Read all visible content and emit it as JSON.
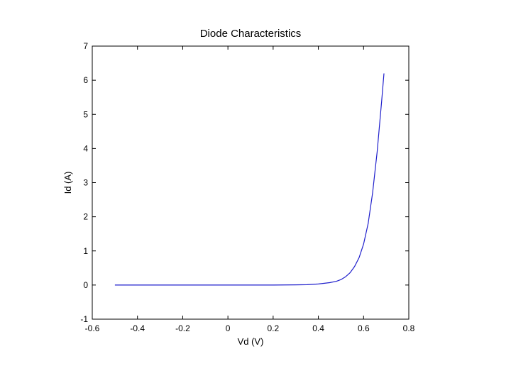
{
  "chart_data": {
    "type": "line",
    "title": "Diode Characteristics",
    "xlabel": "Vd (V)",
    "ylabel": "Id (A)",
    "xlim": [
      -0.6,
      0.8
    ],
    "ylim": [
      -1,
      7
    ],
    "xticks": [
      -0.6,
      -0.4,
      -0.2,
      0,
      0.2,
      0.4,
      0.6,
      0.8
    ],
    "yticks": [
      -1,
      0,
      1,
      2,
      3,
      4,
      5,
      6,
      7
    ],
    "xtick_labels": [
      "-0.6",
      "-0.4",
      "-0.2",
      "0",
      "0.2",
      "0.4",
      "0.6",
      "0.8"
    ],
    "ytick_labels": [
      "-1",
      "0",
      "1",
      "2",
      "3",
      "4",
      "5",
      "6",
      "7"
    ],
    "grid": false,
    "series": [
      {
        "color": "#1f1fcc",
        "x": [
          -0.5,
          -0.4,
          -0.3,
          -0.2,
          -0.1,
          0.0,
          0.1,
          0.2,
          0.3,
          0.35,
          0.4,
          0.45,
          0.48,
          0.5,
          0.52,
          0.54,
          0.56,
          0.58,
          0.6,
          0.62,
          0.64,
          0.66,
          0.68,
          0.69
        ],
        "y": [
          0,
          0,
          0,
          0,
          0,
          0,
          0,
          0,
          0.005,
          0.01,
          0.03,
          0.07,
          0.11,
          0.16,
          0.24,
          0.36,
          0.54,
          0.8,
          1.2,
          1.8,
          2.7,
          3.9,
          5.4,
          6.2
        ]
      }
    ]
  }
}
